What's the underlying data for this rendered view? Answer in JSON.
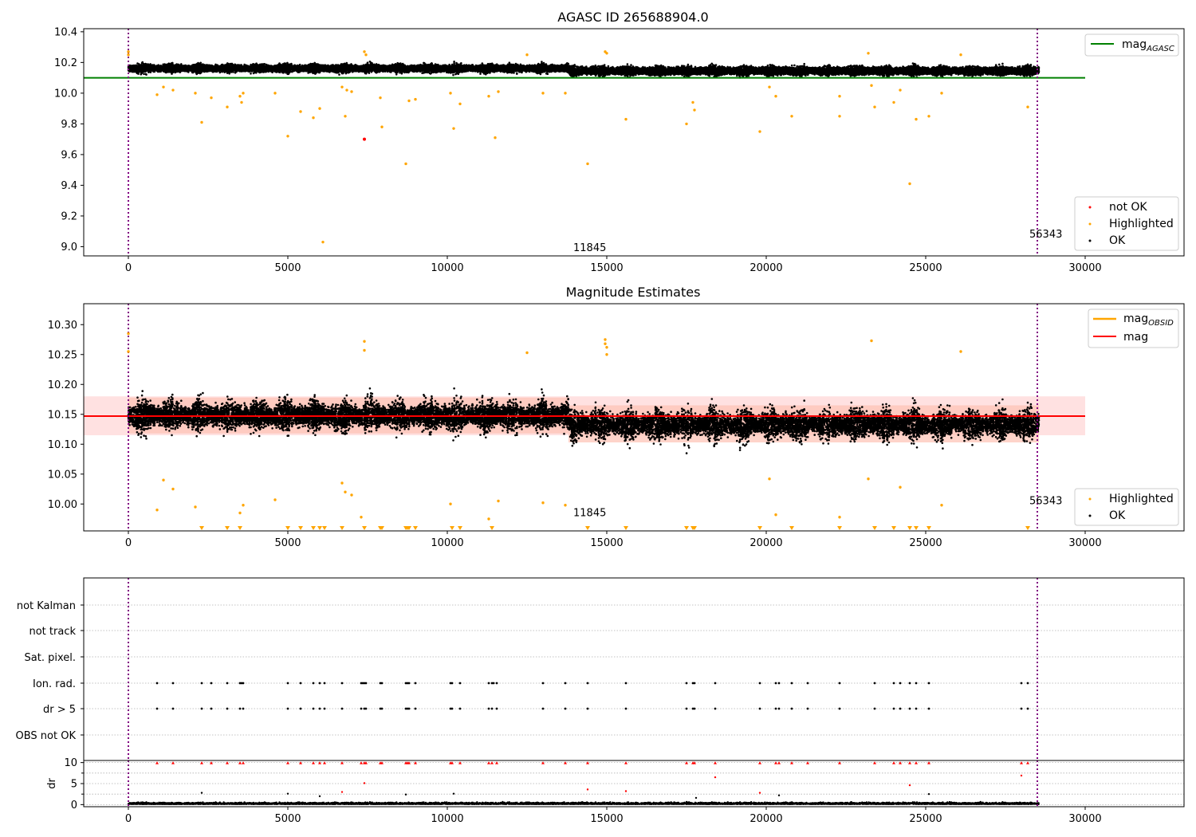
{
  "chart_data": [
    {
      "id": "agasc",
      "type": "scatter",
      "title": "AGASC ID 265688904.0",
      "xlim": [
        -1400,
        33100
      ],
      "ylim": [
        8.94,
        10.42
      ],
      "x_ticks": [
        0,
        5000,
        10000,
        15000,
        20000,
        25000,
        30000
      ],
      "y_ticks": [
        9.0,
        9.2,
        9.4,
        9.6,
        9.8,
        10.0,
        10.2,
        10.4
      ],
      "y_tick_labels": [
        "9.0",
        "9.2",
        "9.4",
        "9.6",
        "9.8",
        "10.0",
        "10.2",
        "10.4"
      ],
      "vlines": [
        0,
        28500
      ],
      "reference_line": {
        "name": "mag_AGASC",
        "y": 10.1,
        "x_range": [
          -1400,
          30000
        ],
        "color": "#008000"
      },
      "ok_band": {
        "center": 10.155,
        "spread": 0.045,
        "x_range": [
          0,
          28550
        ]
      },
      "highlighted": [
        [
          0,
          10.27
        ],
        [
          0,
          10.25
        ],
        [
          900,
          9.99
        ],
        [
          1100,
          10.04
        ],
        [
          1400,
          10.02
        ],
        [
          2100,
          10.0
        ],
        [
          2300,
          9.81
        ],
        [
          2600,
          9.97
        ],
        [
          3100,
          9.91
        ],
        [
          3500,
          9.98
        ],
        [
          3550,
          9.94
        ],
        [
          3600,
          10.0
        ],
        [
          4600,
          10.0
        ],
        [
          5000,
          9.72
        ],
        [
          5400,
          9.88
        ],
        [
          5800,
          9.84
        ],
        [
          6000,
          9.9
        ],
        [
          6100,
          9.03
        ],
        [
          6700,
          10.04
        ],
        [
          6800,
          9.85
        ],
        [
          6850,
          10.02
        ],
        [
          7000,
          10.01
        ],
        [
          7400,
          10.27
        ],
        [
          7450,
          10.25
        ],
        [
          7900,
          9.97
        ],
        [
          7950,
          9.78
        ],
        [
          8700,
          9.54
        ],
        [
          8800,
          9.95
        ],
        [
          9000,
          9.96
        ],
        [
          10100,
          10.0
        ],
        [
          10200,
          9.77
        ],
        [
          10400,
          9.93
        ],
        [
          11300,
          9.98
        ],
        [
          11500,
          9.71
        ],
        [
          11600,
          10.01
        ],
        [
          12500,
          10.25
        ],
        [
          13000,
          10.0
        ],
        [
          13700,
          10.0
        ],
        [
          14400,
          9.54
        ],
        [
          14950,
          10.27
        ],
        [
          15000,
          10.26
        ],
        [
          15600,
          9.83
        ],
        [
          17500,
          9.8
        ],
        [
          17700,
          9.94
        ],
        [
          17750,
          9.89
        ],
        [
          19800,
          9.75
        ],
        [
          20100,
          10.04
        ],
        [
          20300,
          9.98
        ],
        [
          20800,
          9.85
        ],
        [
          22300,
          9.85
        ],
        [
          22300,
          9.98
        ],
        [
          23200,
          10.26
        ],
        [
          23300,
          10.05
        ],
        [
          23400,
          9.91
        ],
        [
          24000,
          9.94
        ],
        [
          24200,
          10.02
        ],
        [
          24500,
          9.41
        ],
        [
          24700,
          9.83
        ],
        [
          25100,
          9.85
        ],
        [
          25500,
          10.0
        ],
        [
          26100,
          10.25
        ],
        [
          28200,
          9.91
        ]
      ],
      "not_ok": [
        [
          7400,
          9.7
        ]
      ],
      "annotations": [
        {
          "x": 14200,
          "y": 8.97,
          "text": "11845"
        },
        {
          "x": 28500,
          "y": 9.06,
          "text": "56343"
        }
      ],
      "legend_top": [
        "mag_AGASC"
      ],
      "legend_bottom": [
        "not OK",
        "Highlighted",
        "OK"
      ]
    },
    {
      "id": "estimates",
      "type": "scatter",
      "title": "Magnitude Estimates",
      "xlim": [
        -1400,
        33100
      ],
      "ylim": [
        9.955,
        10.335
      ],
      "x_ticks": [
        0,
        5000,
        10000,
        15000,
        20000,
        25000,
        30000
      ],
      "y_ticks": [
        10.0,
        10.05,
        10.1,
        10.15,
        10.2,
        10.25,
        10.3
      ],
      "y_tick_labels": [
        "10.00",
        "10.05",
        "10.10",
        "10.15",
        "10.20",
        "10.25",
        "10.30"
      ],
      "vlines": [
        0,
        28500
      ],
      "mag_line": {
        "name": "mag",
        "y": 10.147,
        "x_range": [
          -1400,
          30000
        ],
        "color": "#ff0000"
      },
      "mag_band": {
        "y0": 10.115,
        "y1": 10.18,
        "x_range": [
          -1400,
          30000
        ],
        "color": "#ffc8c8"
      },
      "obsid_band": {
        "y0": 10.118,
        "y1": 10.178,
        "x_range": [
          0,
          13800
        ],
        "color": "#fec2b4"
      },
      "obsid_band2": {
        "y0": 10.103,
        "y1": 10.165,
        "x_range": [
          13800,
          28550
        ],
        "color": "#fec2b4"
      },
      "ok_band": {
        "center": 10.145,
        "spread": 0.045
      },
      "highlighted": [
        [
          0,
          10.285
        ],
        [
          0,
          10.255
        ],
        [
          900,
          9.99
        ],
        [
          1100,
          10.04
        ],
        [
          1400,
          10.025
        ],
        [
          2100,
          9.995
        ],
        [
          3500,
          9.985
        ],
        [
          3600,
          9.998
        ],
        [
          4600,
          10.007
        ],
        [
          6700,
          10.035
        ],
        [
          6800,
          10.02
        ],
        [
          7000,
          10.015
        ],
        [
          7300,
          9.978
        ],
        [
          7400,
          10.272
        ],
        [
          7400,
          10.257
        ],
        [
          10100,
          10.0
        ],
        [
          11300,
          9.975
        ],
        [
          11600,
          10.005
        ],
        [
          12500,
          10.253
        ],
        [
          13000,
          10.002
        ],
        [
          13700,
          9.998
        ],
        [
          14950,
          10.275
        ],
        [
          14950,
          10.268
        ],
        [
          15000,
          10.262
        ],
        [
          15000,
          10.25
        ],
        [
          20100,
          10.042
        ],
        [
          20300,
          9.982
        ],
        [
          22300,
          9.978
        ],
        [
          23200,
          10.042
        ],
        [
          23300,
          10.273
        ],
        [
          24200,
          10.028
        ],
        [
          25500,
          9.998
        ],
        [
          26100,
          10.255
        ]
      ],
      "below_markers": [
        2300,
        3100,
        3500,
        5000,
        5400,
        5800,
        6000,
        6150,
        6700,
        7400,
        7900,
        7950,
        8700,
        8750,
        8800,
        9000,
        10150,
        10400,
        11400,
        14400,
        15600,
        17500,
        17700,
        17750,
        19800,
        20800,
        22300,
        23400,
        24000,
        24500,
        24700,
        25100,
        28200
      ],
      "annotations": [
        {
          "x": 14200,
          "y": 9.98,
          "text": "11845"
        },
        {
          "x": 28500,
          "y": 10.0,
          "text": "56343"
        }
      ],
      "legend_top": [
        "mag_OBSID",
        "mag"
      ],
      "legend_bottom": [
        "Highlighted",
        "OK"
      ]
    },
    {
      "id": "flags",
      "type": "scatter",
      "xlim": [
        -1400,
        33100
      ],
      "vlines": [
        0,
        28500
      ],
      "categories": [
        "not Kalman",
        "not track",
        "Sat. pixel.",
        "Ion. rad.",
        "dr > 5",
        "OBS not OK"
      ],
      "flag_times": [
        900,
        1400,
        2300,
        2600,
        3100,
        3500,
        3600,
        5000,
        5400,
        5800,
        6000,
        6150,
        6700,
        7300,
        7400,
        7450,
        7900,
        7950,
        8700,
        8750,
        8800,
        9000,
        10100,
        10150,
        10400,
        11300,
        11400,
        11550,
        13000,
        13700,
        14400,
        15600,
        17500,
        17700,
        17750,
        18400,
        19800,
        20300,
        20400,
        20800,
        21300,
        22300,
        23400,
        24000,
        24200,
        24500,
        24700,
        25100,
        28000,
        28200
      ],
      "ion_rad_extra": [
        3550,
        7350,
        11450
      ],
      "dr_ylim": [
        -0.5,
        10.5
      ],
      "dr_yticks": [
        0,
        5,
        10
      ],
      "dr_minor_ticks": [
        2.5,
        7.5
      ],
      "dr_ylabel": "dr",
      "dr_red_extra": [
        [
          6700,
          3.0
        ],
        [
          7400,
          5.1
        ],
        [
          14400,
          3.6
        ],
        [
          15600,
          3.2
        ],
        [
          18400,
          6.5
        ],
        [
          19800,
          2.8
        ],
        [
          24500,
          4.6
        ],
        [
          28000,
          6.9
        ]
      ],
      "dr_black_extra": [
        [
          2300,
          2.8
        ],
        [
          5000,
          2.6
        ],
        [
          8700,
          2.4
        ],
        [
          10200,
          2.6
        ],
        [
          20400,
          2.2
        ],
        [
          25100,
          2.5
        ],
        [
          17800,
          1.6
        ],
        [
          6000,
          2.0
        ]
      ]
    }
  ],
  "legend_labels": {
    "mag_agasc_main": "mag",
    "mag_agasc_sub": "AGASC",
    "mag_obsid_main": "mag",
    "mag_obsid_sub": "OBSID",
    "mag": "mag",
    "not_ok": "not OK",
    "highlighted": "Highlighted",
    "ok": "OK"
  },
  "colors": {
    "ok": "#000000",
    "highlighted": "#ffa500",
    "not_ok": "#ff0000",
    "agasc_line": "#008000",
    "mag_line": "#ff0000",
    "obsid_line": "#ffa500",
    "vline": "#800080",
    "grid": "#b0b0b0"
  }
}
